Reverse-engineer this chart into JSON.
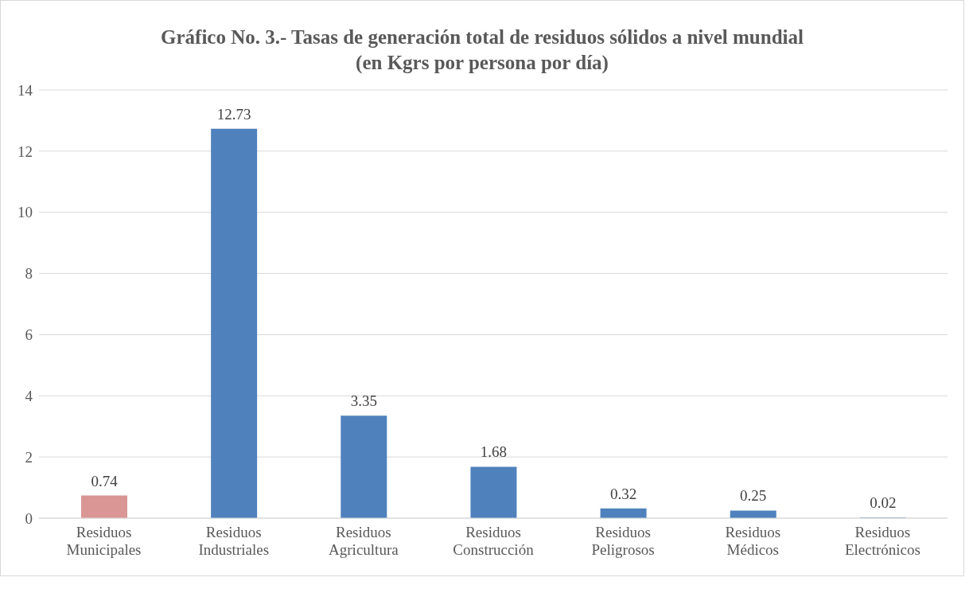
{
  "chart_data": {
    "type": "bar",
    "title": "Gráfico No. 3.- Tasas de generación total de residuos sólidos a nivel mundial\n(en Kgrs por persona por día)",
    "categories": [
      "Residuos Municipales",
      "Residuos Industriales",
      "Residuos Agricultura",
      "Residuos Construcción",
      "Residuos Peligrosos",
      "Residuos Médicos",
      "Residuos Electrónicos"
    ],
    "values": [
      0.74,
      12.73,
      3.35,
      1.68,
      0.32,
      0.25,
      0.02
    ],
    "colors": [
      "#d99694",
      "#4f81bd",
      "#4f81bd",
      "#4f81bd",
      "#4f81bd",
      "#4f81bd",
      "#4f81bd"
    ],
    "ylim": [
      0,
      14
    ],
    "yticks": [
      0,
      2,
      4,
      6,
      8,
      10,
      12,
      14
    ],
    "grid": "y",
    "data_labels": true
  }
}
